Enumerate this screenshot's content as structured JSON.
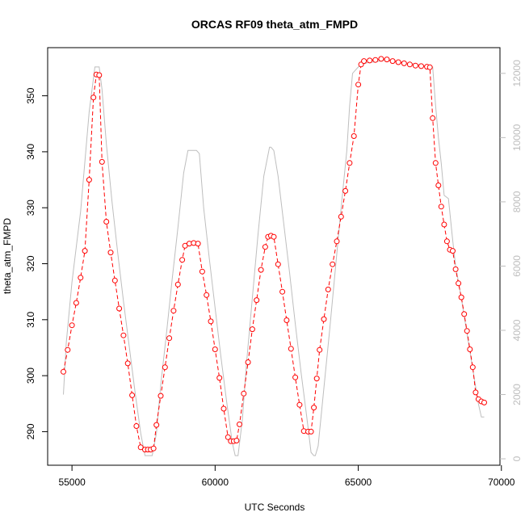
{
  "chart_data": {
    "type": "line",
    "title": "ORCAS RF09 theta_atm_FMPD",
    "xlabel": "UTC Seconds",
    "ylabel": "theta_atm_FMPD",
    "xlim": [
      54150,
      69950
    ],
    "ylim": [
      284,
      358.6
    ],
    "y2lim": [
      -200,
      12800
    ],
    "x_ticks": [
      "55000",
      "60000",
      "65000",
      "70000"
    ],
    "y_ticks": [
      "290",
      "300",
      "310",
      "320",
      "330",
      "340",
      "350"
    ],
    "y2_ticks": [
      "0",
      "2000",
      "4000",
      "6000",
      "8000",
      "10000",
      "12000"
    ],
    "colors": {
      "theta": "#ff0000",
      "altitude": "#bebebe"
    },
    "theta_series": {
      "x": [
        54700,
        54850,
        55000,
        55150,
        55300,
        55450,
        55600,
        55750,
        55850,
        55950,
        56050,
        56200,
        56350,
        56500,
        56650,
        56800,
        56950,
        57100,
        57250,
        57400,
        57550,
        57650,
        57750,
        57850,
        57950,
        58100,
        58250,
        58400,
        58550,
        58700,
        58850,
        58950,
        59100,
        59250,
        59400,
        59550,
        59700,
        59850,
        60000,
        60150,
        60300,
        60450,
        60550,
        60650,
        60750,
        60850,
        61000,
        61150,
        61300,
        61450,
        61600,
        61750,
        61850,
        61950,
        62050,
        62200,
        62350,
        62500,
        62650,
        62800,
        62950,
        63100,
        63250,
        63350,
        63450,
        63550,
        63650,
        63800,
        63950,
        64100,
        64250,
        64400,
        64550,
        64700,
        64850,
        65000,
        65100,
        65200,
        65400,
        65600,
        65800,
        66000,
        66200,
        66400,
        66600,
        66800,
        67000,
        67200,
        67400,
        67500,
        67600,
        67700,
        67800,
        67900,
        68000,
        68100,
        68200,
        68300,
        68400,
        68500,
        68600,
        68700,
        68800,
        68900,
        69000,
        69100,
        69200,
        69300,
        69400
      ],
      "y": [
        300.7,
        304.6,
        309.0,
        313.0,
        317.5,
        322.3,
        335.0,
        349.7,
        353.8,
        353.7,
        338.2,
        327.5,
        322.0,
        317.0,
        312.0,
        307.2,
        302.2,
        296.5,
        291.0,
        287.2,
        286.8,
        286.8,
        286.8,
        287.0,
        291.2,
        296.4,
        301.5,
        306.7,
        311.6,
        316.3,
        320.7,
        323.2,
        323.6,
        323.7,
        323.6,
        318.6,
        314.4,
        309.7,
        304.7,
        299.6,
        294.1,
        289.0,
        288.3,
        288.3,
        288.4,
        291.3,
        296.8,
        302.4,
        308.3,
        313.5,
        318.9,
        323.0,
        324.8,
        325.0,
        324.8,
        319.9,
        315.0,
        309.9,
        304.8,
        299.7,
        294.8,
        290.1,
        290.0,
        290.0,
        294.3,
        299.5,
        304.6,
        310.1,
        315.4,
        319.9,
        324.0,
        328.4,
        333.0,
        338.0,
        342.8,
        352.0,
        355.6,
        356.2,
        356.3,
        356.4,
        356.6,
        356.5,
        356.2,
        356.0,
        355.8,
        355.6,
        355.4,
        355.3,
        355.2,
        355.1,
        346.0,
        338.0,
        334.0,
        330.2,
        327.0,
        324.0,
        322.5,
        322.3,
        319.0,
        316.5,
        314.0,
        311.0,
        308.0,
        304.7,
        301.5,
        297.0,
        295.8,
        295.4,
        295.2
      ]
    },
    "altitude_series": {
      "x": [
        54700,
        54800,
        55000,
        55300,
        55600,
        55800,
        55950,
        56050,
        56200,
        56400,
        56600,
        56800,
        57000,
        57200,
        57400,
        57550,
        57650,
        57800,
        57950,
        58100,
        58300,
        58500,
        58700,
        58900,
        59050,
        59200,
        59350,
        59450,
        59600,
        59800,
        60000,
        60200,
        60400,
        60600,
        60700,
        60800,
        60950,
        61100,
        61300,
        61500,
        61700,
        61900,
        61950,
        62050,
        62200,
        62400,
        62600,
        62800,
        63000,
        63200,
        63350,
        63450,
        63500,
        63600,
        63800,
        64000,
        64200,
        64400,
        64600,
        64700,
        64800,
        65000,
        65200,
        65400,
        65600,
        65800,
        66000,
        66200,
        66400,
        66600,
        66800,
        67000,
        67200,
        67400,
        67600,
        67700,
        67800,
        67900,
        68000,
        68150,
        68300,
        68400,
        68600,
        68800,
        69000,
        69200,
        69300,
        69400
      ],
      "y": [
        2000,
        3600,
        5500,
        7700,
        10800,
        12200,
        12200,
        11500,
        9800,
        8000,
        6400,
        4900,
        3500,
        2100,
        800,
        100,
        100,
        100,
        800,
        2300,
        3900,
        5600,
        7200,
        8900,
        9600,
        9600,
        9600,
        9500,
        7800,
        6200,
        4700,
        3200,
        1800,
        500,
        100,
        100,
        1200,
        3000,
        5000,
        7000,
        8800,
        9700,
        9700,
        9600,
        8800,
        7300,
        5800,
        4200,
        2700,
        1300,
        200,
        100,
        100,
        400,
        2200,
        4000,
        5900,
        7800,
        9600,
        11000,
        12000,
        12200,
        12300,
        12350,
        12350,
        12400,
        12400,
        12400,
        12350,
        12350,
        12300,
        12300,
        12250,
        12200,
        12200,
        11000,
        10000,
        9200,
        8200,
        8100,
        6800,
        6000,
        5000,
        3900,
        2800,
        1700,
        1300,
        1300
      ]
    }
  }
}
